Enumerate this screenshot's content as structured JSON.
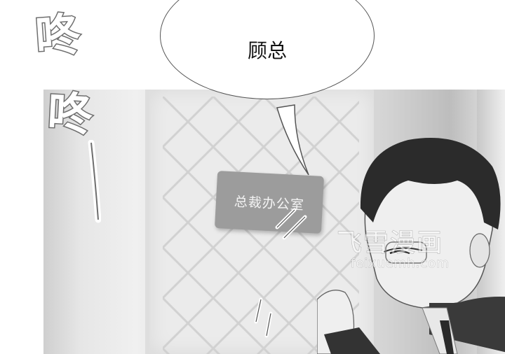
{
  "bubble": {
    "text": "顾总"
  },
  "sound_effects": {
    "first": "咚",
    "second": "咚"
  },
  "door_sign": {
    "text": "总裁办公室"
  },
  "watermark": {
    "title": "飞雪漫画",
    "url": "feixuemh.com"
  },
  "colors": {
    "sfx_outline": "#6e6e6e",
    "bubble_border": "#555555",
    "sign": "#9c9c9c"
  }
}
